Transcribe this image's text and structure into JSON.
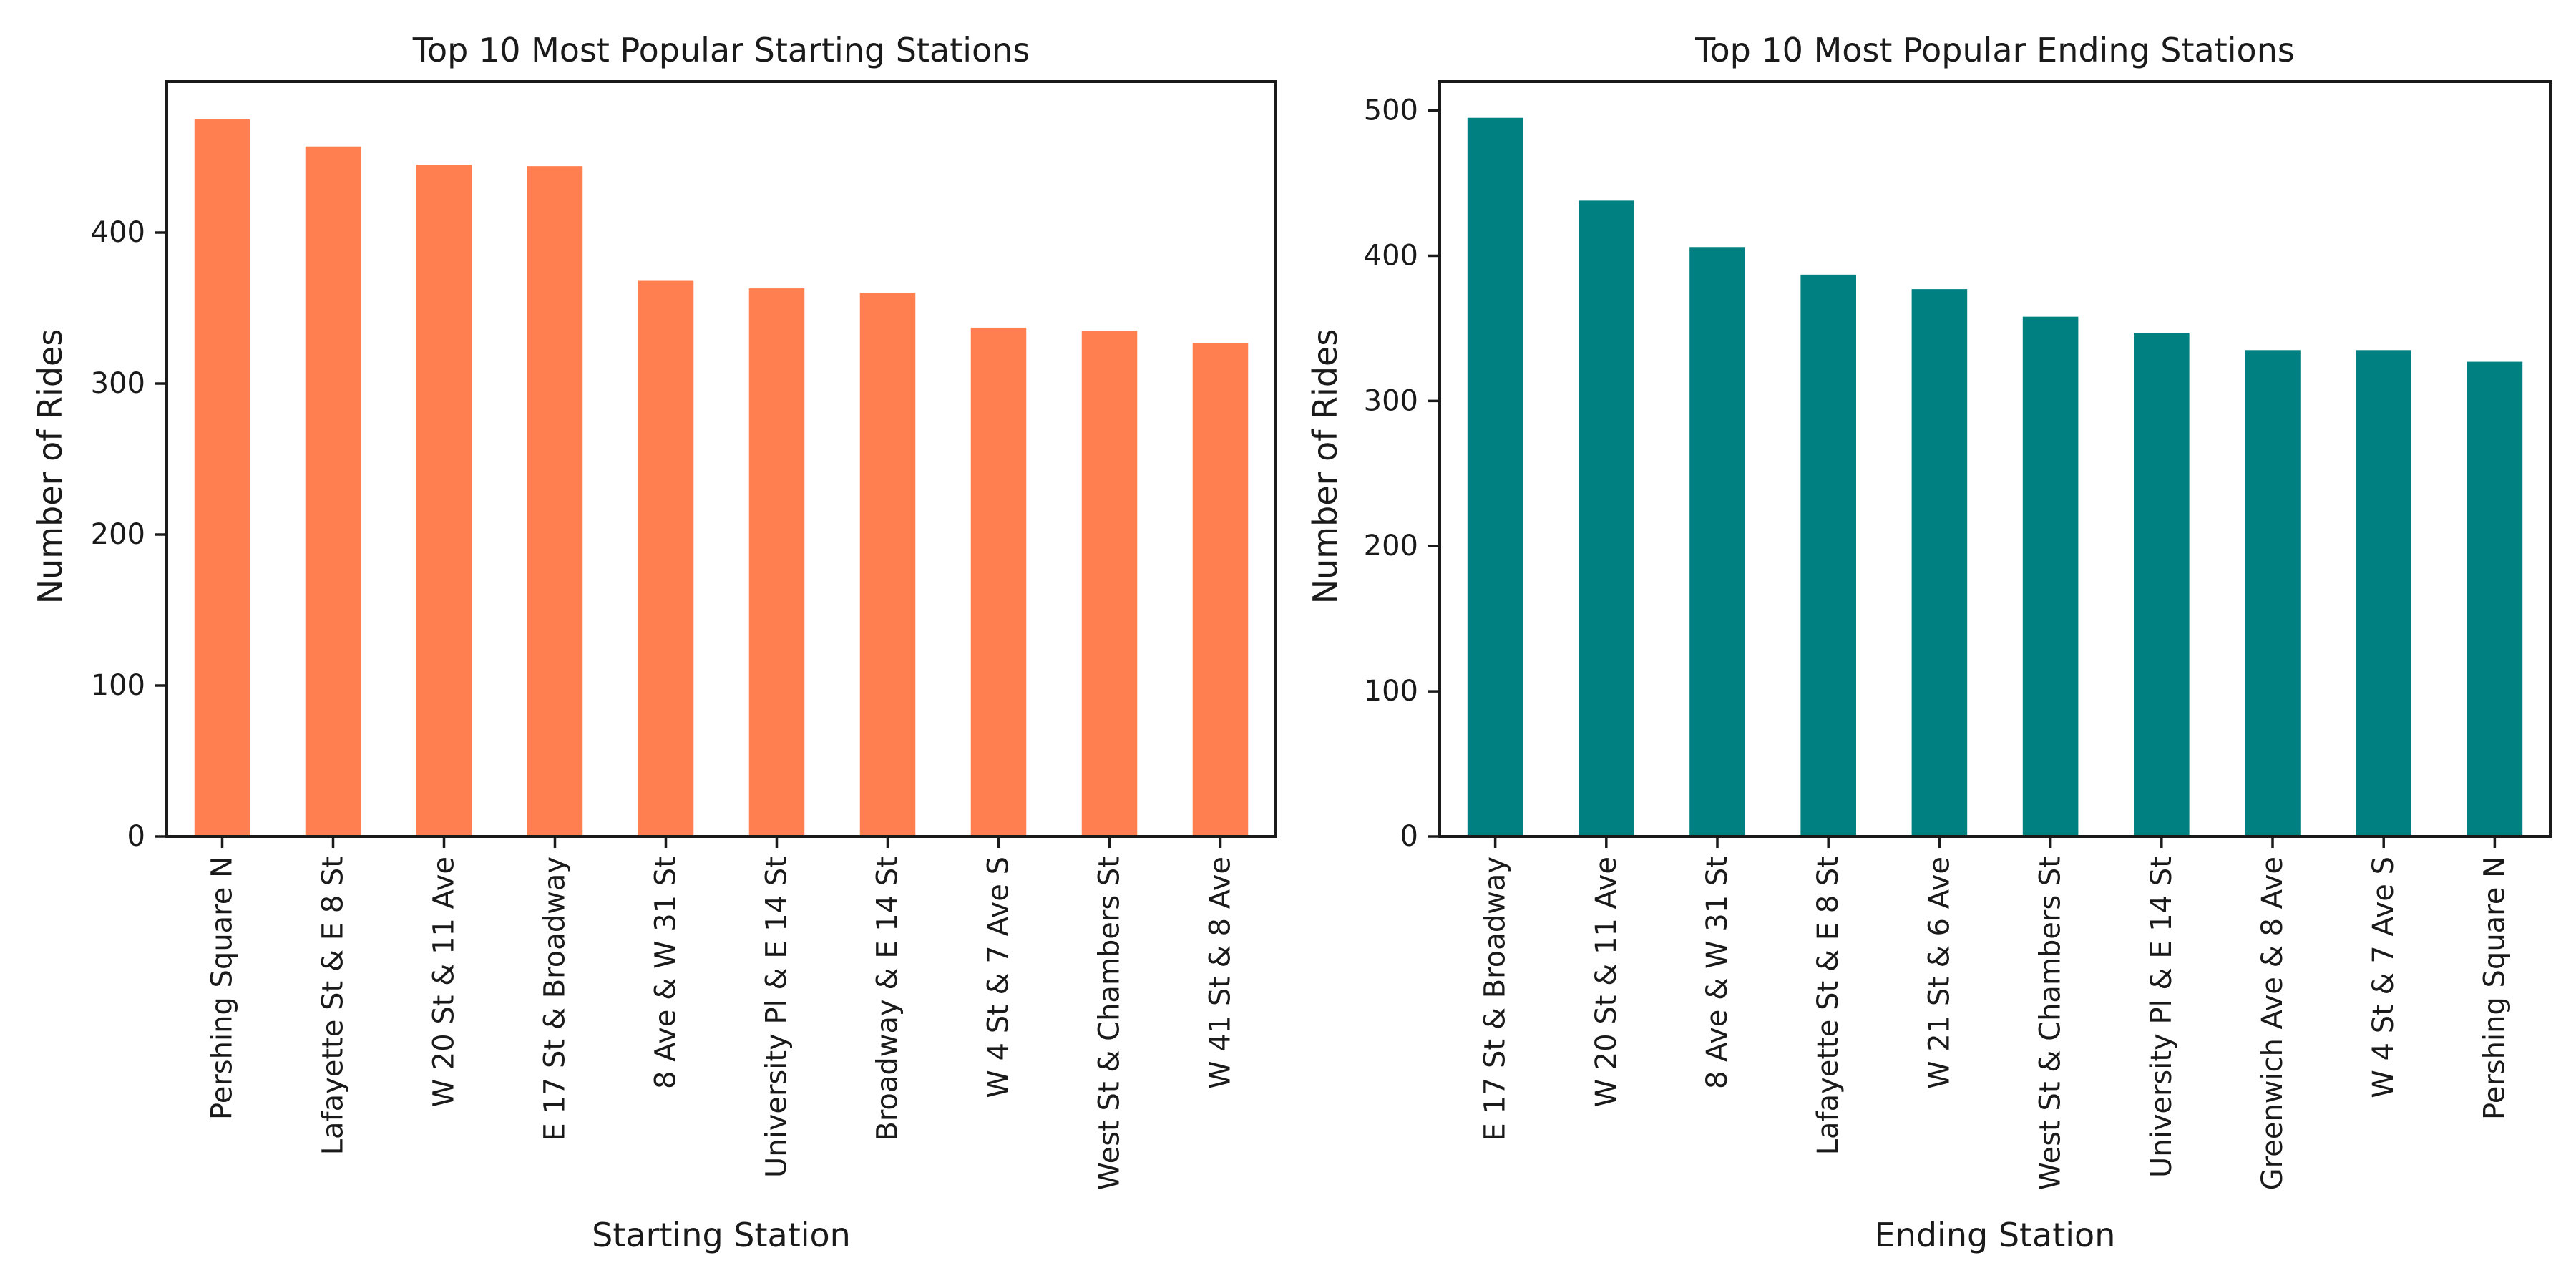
{
  "chart_data": [
    {
      "type": "bar",
      "title": "Top 10 Most Popular Starting Stations",
      "xlabel": "Starting Station",
      "ylabel": "Number of Rides",
      "ylim": [
        0,
        500
      ],
      "yticks": [
        0,
        100,
        200,
        300,
        400
      ],
      "color": "#FF7F50",
      "grid": false,
      "categories": [
        "Pershing Square N",
        "Lafayette St & E 8 St",
        "W 20 St & 11 Ave",
        "E 17 St & Broadway",
        "8 Ave & W 31 St",
        "University Pl & E 14 St",
        "Broadway & E 14 St",
        "W 4 St & 7 Ave S",
        "West St & Chambers St",
        "W 41 St & 8 Ave"
      ],
      "values": [
        475,
        457,
        445,
        444,
        368,
        363,
        360,
        337,
        335,
        327
      ]
    },
    {
      "type": "bar",
      "title": "Top 10 Most Popular Ending Stations",
      "xlabel": "Ending Station",
      "ylabel": "Number of Rides",
      "ylim": [
        0,
        520
      ],
      "yticks": [
        0,
        100,
        200,
        300,
        400,
        500
      ],
      "color": "#008080",
      "grid": false,
      "categories": [
        "E 17 St & Broadway",
        "W 20 St & 11 Ave",
        "8 Ave & W 31 St",
        "Lafayette St & E 8 St",
        "W 21 St & 6 Ave",
        "West St & Chambers St",
        "University Pl & E 14 St",
        "Greenwich Ave & 8 Ave",
        "W 4 St & 7 Ave S",
        "Pershing Square N"
      ],
      "values": [
        495,
        438,
        406,
        387,
        377,
        358,
        347,
        335,
        335,
        327
      ]
    }
  ]
}
